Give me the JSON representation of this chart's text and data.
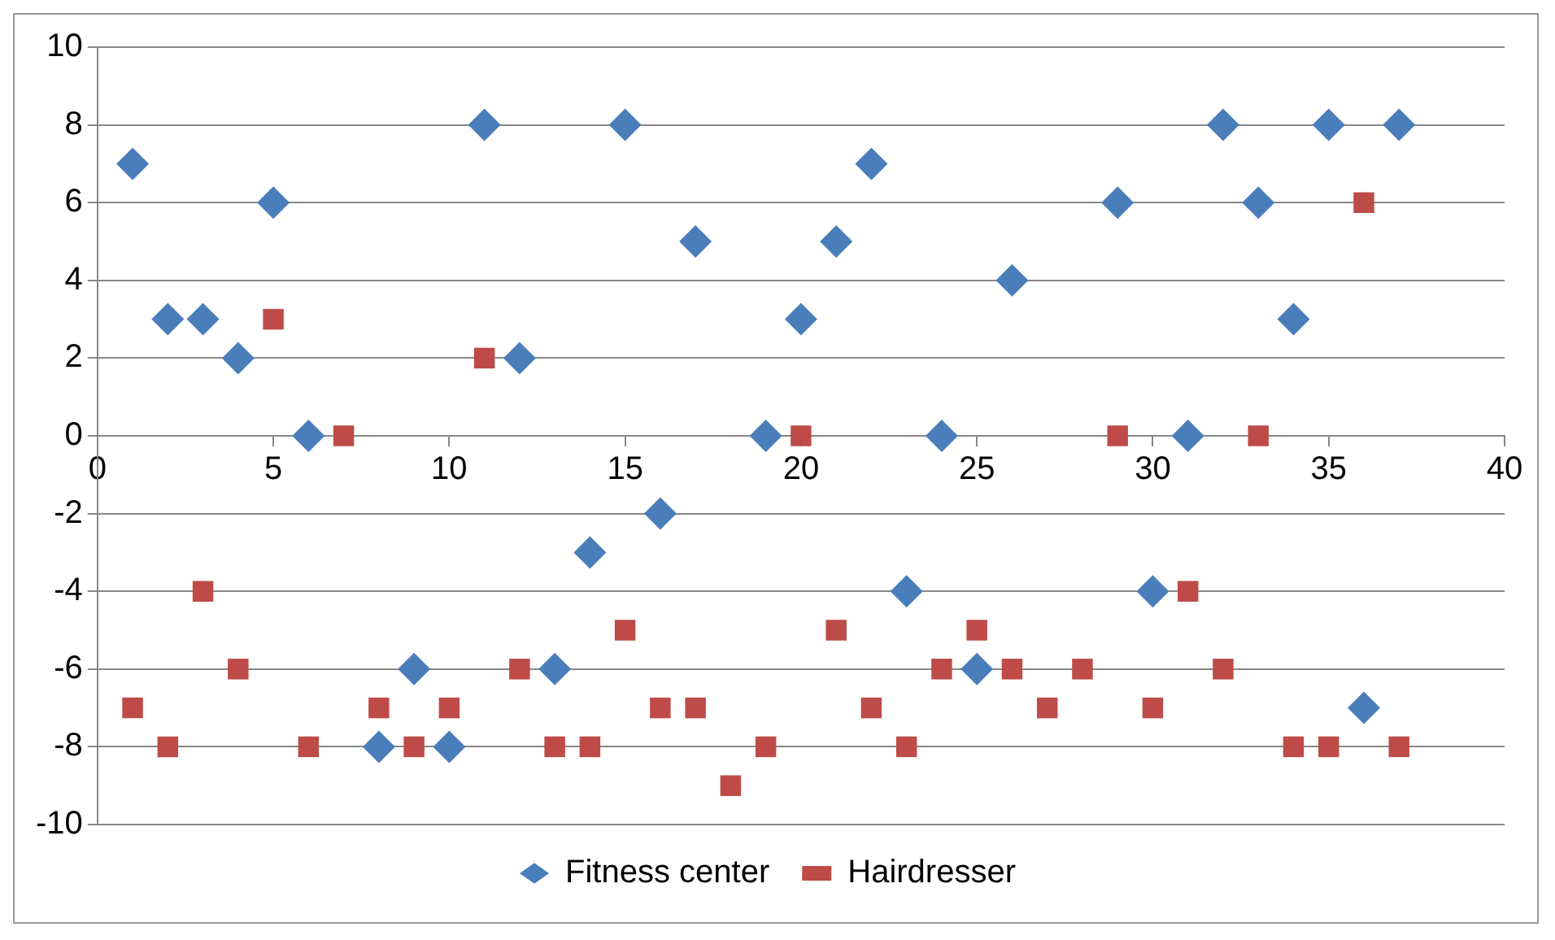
{
  "chart_data": {
    "type": "scatter",
    "xlim": [
      0,
      40
    ],
    "xticks": [
      0,
      5,
      10,
      15,
      20,
      25,
      30,
      35,
      40
    ],
    "ylim": [
      -10,
      10
    ],
    "yticks": [
      -10,
      -8,
      -6,
      -4,
      -2,
      0,
      2,
      4,
      6,
      8,
      10
    ],
    "grid": "y",
    "legend": "bottom",
    "series": [
      {
        "name": "Fitness center",
        "color": "#4a7ebb",
        "marker": "diamond",
        "x": [
          1,
          2,
          3,
          4,
          5,
          6,
          8,
          9,
          10,
          11,
          12,
          13,
          14,
          15,
          16,
          17,
          19,
          20,
          21,
          22,
          23,
          24,
          25,
          26,
          29,
          30,
          31,
          32,
          33,
          34,
          35,
          36,
          37
        ],
        "values": [
          7,
          3,
          3,
          2,
          6,
          0,
          -8,
          -6,
          -8,
          8,
          2,
          -6,
          -3,
          8,
          -2,
          5,
          0,
          3,
          5,
          7,
          -4,
          0,
          -6,
          4,
          6,
          -4,
          0,
          8,
          6,
          3,
          8,
          -7,
          8
        ]
      },
      {
        "name": "Hairdresser",
        "color": "#be4b48",
        "marker": "square",
        "x": [
          1,
          2,
          3,
          4,
          5,
          6,
          7,
          8,
          9,
          10,
          11,
          12,
          13,
          14,
          15,
          16,
          17,
          18,
          19,
          20,
          21,
          22,
          23,
          24,
          25,
          26,
          27,
          28,
          29,
          30,
          31,
          32,
          33,
          34,
          35,
          36,
          37
        ],
        "values": [
          -7,
          -8,
          -4,
          -6,
          3,
          -8,
          0,
          -7,
          -8,
          -7,
          2,
          -6,
          -8,
          -8,
          -5,
          -7,
          -7,
          -9,
          -8,
          0,
          -5,
          -7,
          -8,
          -6,
          -5,
          -6,
          -7,
          -6,
          0,
          -7,
          -4,
          -6,
          0,
          -8,
          -8,
          6,
          -8
        ]
      }
    ]
  }
}
